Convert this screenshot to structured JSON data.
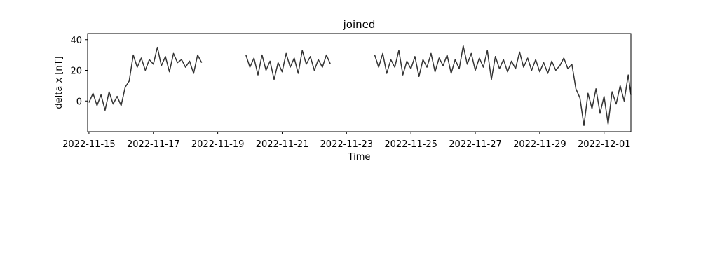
{
  "chart_data": {
    "type": "line",
    "title": "joined",
    "xlabel": "Time",
    "ylabel": "delta x [nT]",
    "x_start": "2022-11-14T23:00",
    "x_end": "2022-12-01T20:00",
    "x_ticks": [
      "2022-11-15",
      "2022-11-17",
      "2022-11-19",
      "2022-11-21",
      "2022-11-23",
      "2022-11-25",
      "2022-11-27",
      "2022-11-29",
      "2022-12-01"
    ],
    "ylim": [
      -20,
      44
    ],
    "y_ticks": [
      0,
      20,
      40
    ],
    "grid": false,
    "line_color": "#333333",
    "series": [
      {
        "points": [
          [
            "2022-11-15T00:00",
            -1
          ],
          [
            "2022-11-15T03:00",
            5
          ],
          [
            "2022-11-15T06:00",
            -3
          ],
          [
            "2022-11-15T09:00",
            4
          ],
          [
            "2022-11-15T12:00",
            -6
          ],
          [
            "2022-11-15T15:00",
            6
          ],
          [
            "2022-11-15T18:00",
            -2
          ],
          [
            "2022-11-15T21:00",
            3
          ],
          [
            "2022-11-16T00:00",
            -3
          ],
          [
            "2022-11-16T03:00",
            9
          ],
          [
            "2022-11-16T06:00",
            13
          ],
          [
            "2022-11-16T09:00",
            30
          ],
          [
            "2022-11-16T12:00",
            22
          ],
          [
            "2022-11-16T15:00",
            28
          ],
          [
            "2022-11-16T18:00",
            20
          ],
          [
            "2022-11-16T21:00",
            27
          ],
          [
            "2022-11-17T00:00",
            24
          ],
          [
            "2022-11-17T03:00",
            35
          ],
          [
            "2022-11-17T06:00",
            23
          ],
          [
            "2022-11-17T09:00",
            29
          ],
          [
            "2022-11-17T12:00",
            19
          ],
          [
            "2022-11-17T15:00",
            31
          ],
          [
            "2022-11-17T18:00",
            25
          ],
          [
            "2022-11-17T21:00",
            27
          ],
          [
            "2022-11-18T00:00",
            22
          ],
          [
            "2022-11-18T03:00",
            26
          ],
          [
            "2022-11-18T06:00",
            18
          ],
          [
            "2022-11-18T09:00",
            30
          ],
          [
            "2022-11-18T12:00",
            25
          ]
        ]
      },
      {
        "points": [
          [
            "2022-11-19T21:00",
            30
          ],
          [
            "2022-11-20T00:00",
            22
          ],
          [
            "2022-11-20T03:00",
            28
          ],
          [
            "2022-11-20T06:00",
            17
          ],
          [
            "2022-11-20T09:00",
            30
          ],
          [
            "2022-11-20T12:00",
            20
          ],
          [
            "2022-11-20T15:00",
            26
          ],
          [
            "2022-11-20T18:00",
            14
          ],
          [
            "2022-11-20T21:00",
            25
          ],
          [
            "2022-11-21T00:00",
            19
          ],
          [
            "2022-11-21T03:00",
            31
          ],
          [
            "2022-11-21T06:00",
            22
          ],
          [
            "2022-11-21T09:00",
            28
          ],
          [
            "2022-11-21T12:00",
            18
          ],
          [
            "2022-11-21T15:00",
            33
          ],
          [
            "2022-11-21T18:00",
            24
          ],
          [
            "2022-11-21T21:00",
            29
          ],
          [
            "2022-11-22T00:00",
            20
          ],
          [
            "2022-11-22T03:00",
            27
          ],
          [
            "2022-11-22T06:00",
            22
          ],
          [
            "2022-11-22T09:00",
            30
          ],
          [
            "2022-11-22T12:00",
            24
          ]
        ]
      },
      {
        "points": [
          [
            "2022-11-23T21:00",
            30
          ],
          [
            "2022-11-24T00:00",
            22
          ],
          [
            "2022-11-24T03:00",
            31
          ],
          [
            "2022-11-24T06:00",
            18
          ],
          [
            "2022-11-24T09:00",
            27
          ],
          [
            "2022-11-24T12:00",
            22
          ],
          [
            "2022-11-24T15:00",
            33
          ],
          [
            "2022-11-24T18:00",
            17
          ],
          [
            "2022-11-24T21:00",
            26
          ],
          [
            "2022-11-25T00:00",
            21
          ],
          [
            "2022-11-25T03:00",
            29
          ],
          [
            "2022-11-25T06:00",
            16
          ],
          [
            "2022-11-25T09:00",
            27
          ],
          [
            "2022-11-25T12:00",
            22
          ],
          [
            "2022-11-25T15:00",
            31
          ],
          [
            "2022-11-25T18:00",
            19
          ],
          [
            "2022-11-25T21:00",
            28
          ],
          [
            "2022-11-26T00:00",
            23
          ],
          [
            "2022-11-26T03:00",
            30
          ],
          [
            "2022-11-26T06:00",
            18
          ],
          [
            "2022-11-26T09:00",
            27
          ],
          [
            "2022-11-26T12:00",
            21
          ],
          [
            "2022-11-26T15:00",
            36
          ],
          [
            "2022-11-26T18:00",
            24
          ],
          [
            "2022-11-26T21:00",
            31
          ],
          [
            "2022-11-27T00:00",
            20
          ],
          [
            "2022-11-27T03:00",
            28
          ],
          [
            "2022-11-27T06:00",
            22
          ],
          [
            "2022-11-27T09:00",
            33
          ],
          [
            "2022-11-27T12:00",
            14
          ],
          [
            "2022-11-27T15:00",
            29
          ],
          [
            "2022-11-27T18:00",
            21
          ],
          [
            "2022-11-27T21:00",
            27
          ],
          [
            "2022-11-28T00:00",
            19
          ],
          [
            "2022-11-28T03:00",
            26
          ],
          [
            "2022-11-28T06:00",
            21
          ],
          [
            "2022-11-28T09:00",
            32
          ],
          [
            "2022-11-28T12:00",
            22
          ],
          [
            "2022-11-28T15:00",
            28
          ],
          [
            "2022-11-28T18:00",
            20
          ],
          [
            "2022-11-28T21:00",
            27
          ],
          [
            "2022-11-29T00:00",
            19
          ],
          [
            "2022-11-29T03:00",
            25
          ],
          [
            "2022-11-29T06:00",
            18
          ],
          [
            "2022-11-29T09:00",
            26
          ],
          [
            "2022-11-29T12:00",
            20
          ],
          [
            "2022-11-29T15:00",
            23
          ],
          [
            "2022-11-29T18:00",
            28
          ],
          [
            "2022-11-29T21:00",
            21
          ],
          [
            "2022-11-30T00:00",
            24
          ],
          [
            "2022-11-30T03:00",
            8
          ],
          [
            "2022-11-30T06:00",
            2
          ],
          [
            "2022-11-30T09:00",
            -16
          ],
          [
            "2022-11-30T12:00",
            5
          ],
          [
            "2022-11-30T15:00",
            -5
          ],
          [
            "2022-11-30T18:00",
            8
          ],
          [
            "2022-11-30T21:00",
            -8
          ],
          [
            "2022-12-01T00:00",
            3
          ],
          [
            "2022-12-01T03:00",
            -15
          ],
          [
            "2022-12-01T06:00",
            6
          ],
          [
            "2022-12-01T09:00",
            -2
          ],
          [
            "2022-12-01T12:00",
            10
          ],
          [
            "2022-12-01T15:00",
            0
          ],
          [
            "2022-12-01T18:00",
            17
          ],
          [
            "2022-12-01T20:00",
            4
          ]
        ]
      }
    ]
  }
}
